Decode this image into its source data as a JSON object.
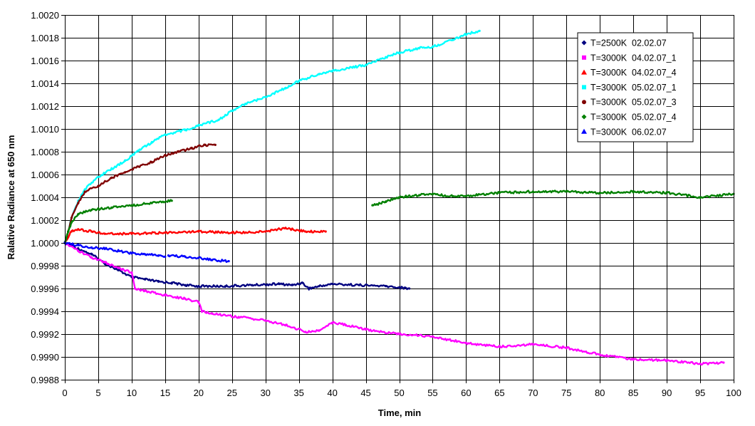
{
  "chart_data": {
    "type": "line",
    "title": "",
    "xlabel": "Time, min",
    "ylabel": "Ralative Radiance at 650 nm",
    "xlim": [
      0,
      100
    ],
    "ylim": [
      0.9988,
      1.002
    ],
    "x_ticks": [
      "0",
      "5",
      "10",
      "15",
      "20",
      "25",
      "30",
      "35",
      "40",
      "45",
      "50",
      "55",
      "60",
      "65",
      "70",
      "75",
      "80",
      "85",
      "90",
      "95",
      "100"
    ],
    "y_ticks": [
      "1.0020",
      "1.0018",
      "1.0016",
      "1.0014",
      "1.0012",
      "1.0010",
      "1.0008",
      "1.0006",
      "1.0004",
      "1.0002",
      "1.0000",
      "0.9998",
      "0.9996",
      "0.9994",
      "0.9992",
      "0.9990",
      "0.9988"
    ],
    "grid": true,
    "legend_position": "top-right",
    "series": [
      {
        "name": "T=2500K  02.02.07",
        "color": "#000080",
        "marker": "diamond",
        "points": [
          [
            0,
            1.0
          ],
          [
            2,
            0.99995
          ],
          [
            4,
            0.9999
          ],
          [
            6,
            0.99982
          ],
          [
            8,
            0.99976
          ],
          [
            10,
            0.9997
          ],
          [
            12,
            0.99968
          ],
          [
            14,
            0.99966
          ],
          [
            16,
            0.99965
          ],
          [
            18,
            0.99963
          ],
          [
            20,
            0.99962
          ],
          [
            24,
            0.99962
          ],
          [
            28,
            0.99963
          ],
          [
            32,
            0.99964
          ],
          [
            34,
            0.99963
          ],
          [
            35.5,
            0.99965
          ],
          [
            36.5,
            0.9996
          ],
          [
            38,
            0.99962
          ],
          [
            40,
            0.99964
          ],
          [
            44,
            0.99963
          ],
          [
            48,
            0.99962
          ],
          [
            51.5,
            0.9996
          ]
        ]
      },
      {
        "name": "T=3000K  04.02.07_1",
        "color": "#ff00ff",
        "marker": "square",
        "points": [
          [
            0,
            1.0
          ],
          [
            2,
            0.99993
          ],
          [
            4,
            0.99987
          ],
          [
            6,
            0.99983
          ],
          [
            8,
            0.99978
          ],
          [
            10,
            0.99974
          ],
          [
            10.5,
            0.9996
          ],
          [
            12,
            0.99958
          ],
          [
            15,
            0.99954
          ],
          [
            18,
            0.99951
          ],
          [
            20,
            0.99948
          ],
          [
            20.5,
            0.9994
          ],
          [
            22,
            0.99938
          ],
          [
            26,
            0.99935
          ],
          [
            30,
            0.99932
          ],
          [
            33,
            0.99928
          ],
          [
            36,
            0.99922
          ],
          [
            38,
            0.99923
          ],
          [
            40,
            0.9993
          ],
          [
            42,
            0.99928
          ],
          [
            45,
            0.99924
          ],
          [
            50,
            0.9992
          ],
          [
            55,
            0.99918
          ],
          [
            60,
            0.99912
          ],
          [
            65,
            0.99909
          ],
          [
            70,
            0.99911
          ],
          [
            75,
            0.99908
          ],
          [
            80,
            0.99902
          ],
          [
            85,
            0.99898
          ],
          [
            90,
            0.99897
          ],
          [
            95,
            0.99894
          ],
          [
            98.5,
            0.99895
          ]
        ]
      },
      {
        "name": "T=3000K  04.02.07_4",
        "color": "#ff0000",
        "marker": "triangle",
        "points": [
          [
            0,
            1.0
          ],
          [
            0.5,
            1.00005
          ],
          [
            1,
            1.0001
          ],
          [
            2,
            1.00012
          ],
          [
            4,
            1.0001
          ],
          [
            6,
            1.00008
          ],
          [
            10,
            1.00008
          ],
          [
            15,
            1.00009
          ],
          [
            20,
            1.0001
          ],
          [
            25,
            1.00009
          ],
          [
            30,
            1.0001
          ],
          [
            33,
            1.00013
          ],
          [
            36,
            1.0001
          ],
          [
            39,
            1.0001
          ]
        ]
      },
      {
        "name": "T=3000K  05.02.07_1",
        "color": "#00ffff",
        "marker": "square",
        "points": [
          [
            0,
            1.0
          ],
          [
            0.5,
            1.0001
          ],
          [
            1,
            1.00022
          ],
          [
            2,
            1.00037
          ],
          [
            3,
            1.00047
          ],
          [
            5,
            1.00058
          ],
          [
            7,
            1.00065
          ],
          [
            9,
            1.00072
          ],
          [
            11,
            1.00081
          ],
          [
            13,
            1.00088
          ],
          [
            15,
            1.00095
          ],
          [
            18,
            1.00099
          ],
          [
            20,
            1.00103
          ],
          [
            23,
            1.00108
          ],
          [
            25,
            1.00116
          ],
          [
            27,
            1.00122
          ],
          [
            30,
            1.00128
          ],
          [
            33,
            1.00136
          ],
          [
            35,
            1.00142
          ],
          [
            38,
            1.00148
          ],
          [
            40,
            1.00151
          ],
          [
            43,
            1.00154
          ],
          [
            45,
            1.00156
          ],
          [
            48,
            1.00163
          ],
          [
            50,
            1.00167
          ],
          [
            53,
            1.00171
          ],
          [
            55,
            1.00172
          ],
          [
            58,
            1.00178
          ],
          [
            60,
            1.00183
          ],
          [
            62,
            1.00186
          ]
        ]
      },
      {
        "name": "T=3000K  05.02.07_3",
        "color": "#800000",
        "marker": "circle",
        "points": [
          [
            0,
            1.0
          ],
          [
            0.5,
            1.0001
          ],
          [
            1,
            1.00022
          ],
          [
            2,
            1.00035
          ],
          [
            3,
            1.00045
          ],
          [
            5,
            1.0005
          ],
          [
            7,
            1.00057
          ],
          [
            9,
            1.00062
          ],
          [
            11,
            1.00067
          ],
          [
            13,
            1.00071
          ],
          [
            15,
            1.00077
          ],
          [
            17,
            1.0008
          ],
          [
            19,
            1.00083
          ],
          [
            21,
            1.00086
          ],
          [
            22.5,
            1.00086
          ]
        ]
      },
      {
        "name": "T=3000K  05.02.07_4",
        "color": "#008000",
        "marker": "diamond",
        "points": [
          [
            0,
            1.0
          ],
          [
            0.5,
            1.0001
          ],
          [
            1,
            1.00018
          ],
          [
            2,
            1.00025
          ],
          [
            4,
            1.00029
          ],
          [
            7,
            1.00031
          ],
          [
            10,
            1.00033
          ],
          [
            13,
            1.00035
          ],
          [
            16,
            1.00037
          ],
          null,
          [
            46,
            1.00033
          ],
          [
            48,
            1.00036
          ],
          [
            50,
            1.0004
          ],
          [
            53,
            1.00042
          ],
          [
            55,
            1.00043
          ],
          [
            58,
            1.00041
          ],
          [
            60,
            1.00041
          ],
          [
            65,
            1.00044
          ],
          [
            70,
            1.00045
          ],
          [
            75,
            1.00045
          ],
          [
            80,
            1.00044
          ],
          [
            85,
            1.00045
          ],
          [
            90,
            1.00044
          ],
          [
            95,
            1.0004
          ],
          [
            100,
            1.00043
          ]
        ]
      },
      {
        "name": "T=3000K  06.02.07",
        "color": "#0000ff",
        "marker": "triangle",
        "points": [
          [
            0,
            1.0
          ],
          [
            2,
            0.99998
          ],
          [
            4,
            0.99996
          ],
          [
            6,
            0.99995
          ],
          [
            8,
            0.99993
          ],
          [
            10,
            0.99991
          ],
          [
            12,
            0.9999
          ],
          [
            14,
            0.99989
          ],
          [
            15,
            0.99988
          ],
          null,
          [
            15.5,
            0.99989
          ],
          [
            18,
            0.99988
          ],
          [
            20,
            0.99987
          ],
          [
            22,
            0.99985
          ],
          [
            24.5,
            0.99984
          ]
        ]
      }
    ]
  }
}
